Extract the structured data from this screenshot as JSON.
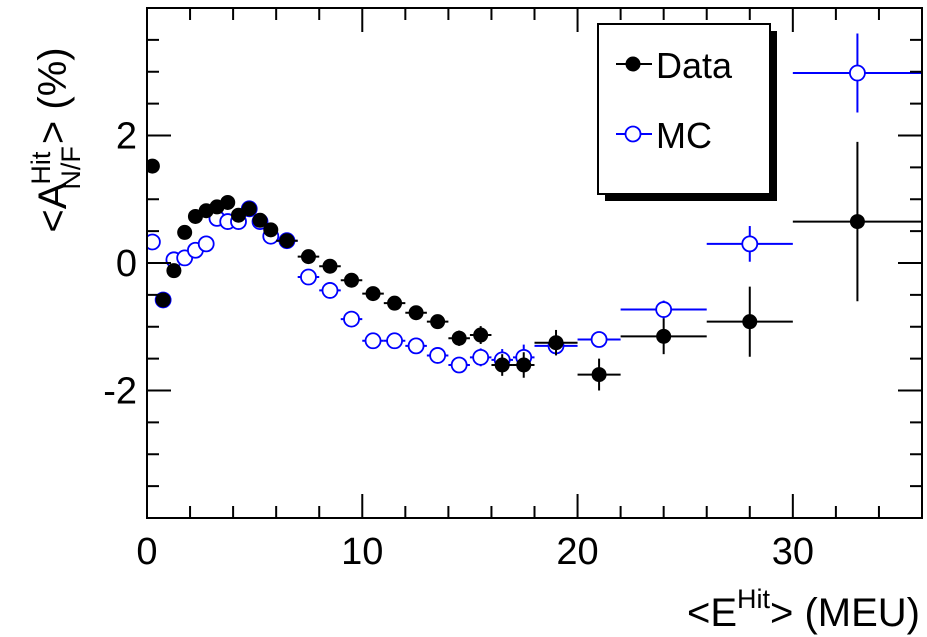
{
  "chart_data": {
    "type": "scatter",
    "title": "",
    "xlabel": {
      "base": "<E",
      "sup": "Hit",
      "tail": "> (MEU)"
    },
    "ylabel": {
      "open": "<A",
      "sup": "Hit",
      "sub": "N/F",
      "tail": "> (%)"
    },
    "xlim": [
      0,
      36
    ],
    "ylim": [
      -4,
      4
    ],
    "xticks": [
      0,
      10,
      20,
      30
    ],
    "xtick_labels": [
      "0",
      "10",
      "20",
      "30"
    ],
    "yticks": [
      -2,
      0,
      2
    ],
    "ytick_labels": [
      "-2",
      "0",
      "2"
    ],
    "grid": false,
    "legend_position": "top-right",
    "series": [
      {
        "name": "Data",
        "color": "#000000",
        "marker": "filled-circle",
        "points": [
          {
            "x": 0.25,
            "y": 1.52,
            "xerr": 0,
            "yerr": 0.05
          },
          {
            "x": 0.75,
            "y": -0.58,
            "xerr": 0,
            "yerr": 0.05
          },
          {
            "x": 1.25,
            "y": -0.12,
            "xerr": 0,
            "yerr": 0.05
          },
          {
            "x": 1.75,
            "y": 0.48,
            "xerr": 0,
            "yerr": 0.05
          },
          {
            "x": 2.25,
            "y": 0.73,
            "xerr": 0,
            "yerr": 0.05
          },
          {
            "x": 2.75,
            "y": 0.82,
            "xerr": 0,
            "yerr": 0.05
          },
          {
            "x": 3.25,
            "y": 0.88,
            "xerr": 0,
            "yerr": 0.05
          },
          {
            "x": 3.75,
            "y": 0.95,
            "xerr": 0,
            "yerr": 0.05
          },
          {
            "x": 4.25,
            "y": 0.75,
            "xerr": 0,
            "yerr": 0.05
          },
          {
            "x": 4.75,
            "y": 0.85,
            "xerr": 0,
            "yerr": 0.05
          },
          {
            "x": 5.25,
            "y": 0.67,
            "xerr": 0,
            "yerr": 0.05
          },
          {
            "x": 5.75,
            "y": 0.52,
            "xerr": 0,
            "yerr": 0.05
          },
          {
            "x": 6.5,
            "y": 0.35,
            "xerr": 0.5,
            "yerr": 0.06
          },
          {
            "x": 7.5,
            "y": 0.1,
            "xerr": 0.5,
            "yerr": 0.07
          },
          {
            "x": 8.5,
            "y": -0.05,
            "xerr": 0.5,
            "yerr": 0.07
          },
          {
            "x": 9.5,
            "y": -0.27,
            "xerr": 0.5,
            "yerr": 0.07
          },
          {
            "x": 10.5,
            "y": -0.48,
            "xerr": 0.5,
            "yerr": 0.08
          },
          {
            "x": 11.5,
            "y": -0.63,
            "xerr": 0.5,
            "yerr": 0.08
          },
          {
            "x": 12.5,
            "y": -0.78,
            "xerr": 0.5,
            "yerr": 0.09
          },
          {
            "x": 13.5,
            "y": -0.92,
            "xerr": 0.5,
            "yerr": 0.1
          },
          {
            "x": 14.5,
            "y": -1.18,
            "xerr": 0.5,
            "yerr": 0.12
          },
          {
            "x": 15.5,
            "y": -1.13,
            "xerr": 0.5,
            "yerr": 0.14
          },
          {
            "x": 16.5,
            "y": -1.6,
            "xerr": 0.5,
            "yerr": 0.17
          },
          {
            "x": 17.5,
            "y": -1.6,
            "xerr": 0.5,
            "yerr": 0.2
          },
          {
            "x": 19.0,
            "y": -1.25,
            "xerr": 1.0,
            "yerr": 0.2
          },
          {
            "x": 21.0,
            "y": -1.75,
            "xerr": 1.0,
            "yerr": 0.25
          },
          {
            "x": 24.0,
            "y": -1.15,
            "xerr": 2.0,
            "yerr": 0.28
          },
          {
            "x": 28.0,
            "y": -0.92,
            "xerr": 2.0,
            "yerr": 0.55
          },
          {
            "x": 33.0,
            "y": 0.65,
            "xerr": 3.0,
            "yerr": 1.25
          }
        ]
      },
      {
        "name": "MC",
        "color": "#0000ff",
        "marker": "open-circle",
        "points": [
          {
            "x": 0.25,
            "y": 0.33,
            "xerr": 0,
            "yerr": 0.05
          },
          {
            "x": 0.75,
            "y": -0.58,
            "xerr": 0,
            "yerr": 0.05
          },
          {
            "x": 1.25,
            "y": 0.05,
            "xerr": 0,
            "yerr": 0.05
          },
          {
            "x": 1.75,
            "y": 0.08,
            "xerr": 0,
            "yerr": 0.05
          },
          {
            "x": 2.25,
            "y": 0.2,
            "xerr": 0,
            "yerr": 0.05
          },
          {
            "x": 2.75,
            "y": 0.3,
            "xerr": 0,
            "yerr": 0.05
          },
          {
            "x": 3.25,
            "y": 0.7,
            "xerr": 0,
            "yerr": 0.05
          },
          {
            "x": 3.75,
            "y": 0.65,
            "xerr": 0,
            "yerr": 0.05
          },
          {
            "x": 4.25,
            "y": 0.65,
            "xerr": 0,
            "yerr": 0.05
          },
          {
            "x": 4.75,
            "y": 0.85,
            "xerr": 0,
            "yerr": 0.05
          },
          {
            "x": 5.25,
            "y": 0.65,
            "xerr": 0,
            "yerr": 0.05
          },
          {
            "x": 5.75,
            "y": 0.42,
            "xerr": 0,
            "yerr": 0.05
          },
          {
            "x": 6.5,
            "y": 0.35,
            "xerr": 0.5,
            "yerr": 0.06
          },
          {
            "x": 7.5,
            "y": -0.22,
            "xerr": 0.5,
            "yerr": 0.07
          },
          {
            "x": 8.5,
            "y": -0.43,
            "xerr": 0.5,
            "yerr": 0.07
          },
          {
            "x": 9.5,
            "y": -0.88,
            "xerr": 0.5,
            "yerr": 0.07
          },
          {
            "x": 10.5,
            "y": -1.22,
            "xerr": 0.5,
            "yerr": 0.08
          },
          {
            "x": 11.5,
            "y": -1.22,
            "xerr": 0.5,
            "yerr": 0.08
          },
          {
            "x": 12.5,
            "y": -1.3,
            "xerr": 0.5,
            "yerr": 0.09
          },
          {
            "x": 13.5,
            "y": -1.45,
            "xerr": 0.5,
            "yerr": 0.1
          },
          {
            "x": 14.5,
            "y": -1.6,
            "xerr": 0.5,
            "yerr": 0.12
          },
          {
            "x": 15.5,
            "y": -1.48,
            "xerr": 0.5,
            "yerr": 0.14
          },
          {
            "x": 16.5,
            "y": -1.52,
            "xerr": 0.5,
            "yerr": 0.17
          },
          {
            "x": 17.5,
            "y": -1.48,
            "xerr": 0.5,
            "yerr": 0.2
          },
          {
            "x": 19.0,
            "y": -1.3,
            "xerr": 1.0,
            "yerr": 0.1
          },
          {
            "x": 21.0,
            "y": -1.2,
            "xerr": 1.0,
            "yerr": 0.12
          },
          {
            "x": 24.0,
            "y": -0.73,
            "xerr": 2.0,
            "yerr": 0.14
          },
          {
            "x": 28.0,
            "y": 0.3,
            "xerr": 2.0,
            "yerr": 0.28
          },
          {
            "x": 33.0,
            "y": 2.98,
            "xerr": 3.0,
            "yerr": 0.62
          }
        ]
      }
    ]
  }
}
